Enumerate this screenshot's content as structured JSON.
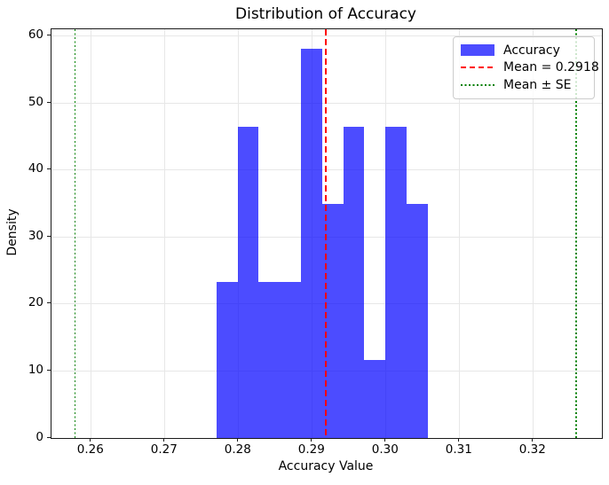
{
  "title": "Distribution of Accuracy",
  "legend": {
    "position": "upper right",
    "items": [
      {
        "label": "Accuracy",
        "swatch": "patch",
        "color": "rgba(0,0,255,0.7)"
      },
      {
        "label": "Mean = 0.2918",
        "swatch": "dashed",
        "color": "#ff0000"
      },
      {
        "label": "Mean ± SE",
        "swatch": "dotted",
        "color": "#008000"
      }
    ]
  },
  "chart_data": {
    "type": "bar",
    "subtype": "histogram",
    "title": "Distribution of Accuracy",
    "xlabel": "Accuracy Value",
    "ylabel": "Density",
    "series_name": "Accuracy",
    "bin_edges": [
      0.277,
      0.27987,
      0.28273,
      0.2856,
      0.28847,
      0.29133,
      0.2942,
      0.29707,
      0.29993,
      0.3028,
      0.30567
    ],
    "densities": [
      23.26,
      46.51,
      23.26,
      23.26,
      58.14,
      34.88,
      46.51,
      11.63,
      46.51,
      34.88
    ],
    "counts": [
      2,
      4,
      2,
      2,
      5,
      3,
      4,
      1,
      4,
      3
    ],
    "n_samples": 30,
    "mean": 0.2918,
    "se": 0.034,
    "mean_line": {
      "x": 0.2918,
      "style": "dashed",
      "color": "#ff0000",
      "label": "Mean = 0.2918"
    },
    "se_lines": {
      "x": [
        0.2578,
        0.3258
      ],
      "style": "dotted",
      "color": "#008000",
      "label": "Mean ± SE"
    },
    "xlim": [
      0.2546,
      0.3293
    ],
    "ylim": [
      0,
      61.0
    ],
    "xtick_values": [
      0.26,
      0.27,
      0.28,
      0.29,
      0.3,
      0.31,
      0.32
    ],
    "xtick_labels": [
      "0.26",
      "0.27",
      "0.28",
      "0.29",
      "0.30",
      "0.31",
      "0.32"
    ],
    "ytick_values": [
      0,
      10,
      20,
      30,
      40,
      50,
      60
    ],
    "ytick_labels": [
      "0",
      "10",
      "20",
      "30",
      "40",
      "50",
      "60"
    ],
    "grid": true,
    "grid_color": "#e7e7e7",
    "bar_color": "rgba(0,0,255,0.7)",
    "legend_position": "upper right"
  }
}
